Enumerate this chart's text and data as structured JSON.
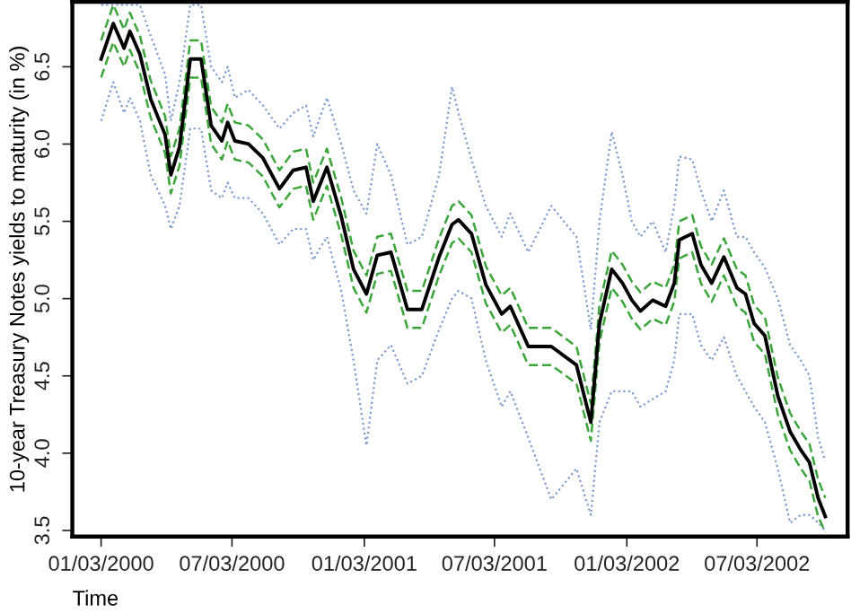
{
  "chart_data": {
    "type": "line",
    "xlabel": "Time",
    "ylabel": "10-year Treasury Notes yields to maturity (in %)",
    "x": [
      "2000-01-03",
      "2000-01-20",
      "2000-02-04",
      "2000-02-12",
      "2000-02-26",
      "2000-03-12",
      "2000-04-01",
      "2000-04-09",
      "2000-04-21",
      "2000-05-06",
      "2000-05-21",
      "2000-06-04",
      "2000-06-19",
      "2000-06-27",
      "2000-07-07",
      "2000-07-26",
      "2000-08-15",
      "2000-09-07",
      "2000-09-26",
      "2000-10-14",
      "2000-10-24",
      "2000-11-12",
      "2000-12-02",
      "2000-12-19",
      "2001-01-06",
      "2001-01-21",
      "2001-02-09",
      "2001-03-04",
      "2001-03-24",
      "2001-04-17",
      "2001-05-05",
      "2001-05-14",
      "2001-06-01",
      "2001-06-21",
      "2001-07-13",
      "2001-07-25",
      "2001-08-19",
      "2001-09-20",
      "2001-10-25",
      "2001-11-14",
      "2001-11-26",
      "2001-12-13",
      "2001-12-28",
      "2002-01-10",
      "2002-01-22",
      "2002-02-08",
      "2002-02-26",
      "2002-03-10",
      "2002-03-17",
      "2002-04-04",
      "2002-04-16",
      "2002-05-01",
      "2002-05-18",
      "2002-06-05",
      "2002-06-17",
      "2002-06-29",
      "2002-07-14",
      "2002-08-01",
      "2002-08-18",
      "2002-09-02",
      "2002-09-14",
      "2002-09-26",
      "2002-10-06"
    ],
    "series": [
      {
        "color": "#7b9bd1",
        "line_style": "dotted",
        "values": [
          6.9,
          6.9,
          6.9,
          6.9,
          6.9,
          6.7,
          6.45,
          6.15,
          6.4,
          6.9,
          6.9,
          6.5,
          6.4,
          6.5,
          6.3,
          6.35,
          6.25,
          6.1,
          6.2,
          6.25,
          6.05,
          6.3,
          6.0,
          5.7,
          5.55,
          6.0,
          5.8,
          5.35,
          5.4,
          5.8,
          6.37,
          6.2,
          5.9,
          5.6,
          5.4,
          5.55,
          5.3,
          5.6,
          5.4,
          4.8,
          5.5,
          6.08,
          5.8,
          5.5,
          5.4,
          5.5,
          5.3,
          5.6,
          5.92,
          5.9,
          5.7,
          5.5,
          5.7,
          5.4,
          5.4,
          5.3,
          5.2,
          5.0,
          4.7,
          4.6,
          4.5,
          4.1,
          3.95
        ]
      },
      {
        "color": "#7b9bd1",
        "line_style": "dotted",
        "values": [
          6.15,
          6.4,
          6.2,
          6.3,
          6.15,
          5.8,
          5.6,
          5.45,
          5.6,
          6.1,
          6.1,
          5.7,
          5.65,
          5.75,
          5.65,
          5.65,
          5.55,
          5.35,
          5.45,
          5.45,
          5.25,
          5.4,
          5.05,
          4.6,
          4.05,
          4.6,
          4.7,
          4.45,
          4.5,
          4.8,
          5.0,
          5.05,
          5.0,
          4.6,
          4.3,
          4.4,
          4.1,
          3.7,
          3.9,
          3.6,
          4.2,
          4.4,
          4.4,
          4.4,
          4.3,
          4.35,
          4.4,
          4.6,
          4.9,
          4.9,
          4.7,
          4.6,
          4.75,
          4.5,
          4.4,
          4.3,
          4.2,
          3.9,
          3.55,
          3.6,
          3.6,
          3.55,
          3.5
        ]
      },
      {
        "color": "#3aa63a",
        "line_style": "dashed",
        "values": [
          6.67,
          6.9,
          6.74,
          6.85,
          6.7,
          6.41,
          6.18,
          5.92,
          6.1,
          6.67,
          6.67,
          6.24,
          6.14,
          6.26,
          6.14,
          6.12,
          6.03,
          5.83,
          5.95,
          5.97,
          5.75,
          5.97,
          5.65,
          5.31,
          5.15,
          5.4,
          5.42,
          5.05,
          5.05,
          5.39,
          5.6,
          5.63,
          5.54,
          5.21,
          5.02,
          5.07,
          4.81,
          4.81,
          4.69,
          4.32,
          4.96,
          5.31,
          5.22,
          5.11,
          5.04,
          5.11,
          5.07,
          5.22,
          5.5,
          5.54,
          5.34,
          5.22,
          5.39,
          5.19,
          5.15,
          4.96,
          4.88,
          4.49,
          4.26,
          4.14,
          4.06,
          3.83,
          3.71
        ]
      },
      {
        "color": "#3aa63a",
        "line_style": "dashed",
        "values": [
          6.43,
          6.66,
          6.5,
          6.61,
          6.46,
          6.17,
          5.94,
          5.68,
          5.86,
          6.43,
          6.43,
          6.0,
          5.9,
          6.02,
          5.9,
          5.88,
          5.79,
          5.59,
          5.71,
          5.73,
          5.51,
          5.73,
          5.41,
          5.07,
          4.91,
          5.16,
          5.18,
          4.81,
          4.81,
          5.15,
          5.36,
          5.39,
          5.3,
          4.97,
          4.78,
          4.83,
          4.57,
          4.57,
          4.45,
          4.08,
          4.72,
          5.07,
          4.98,
          4.87,
          4.8,
          4.87,
          4.83,
          4.98,
          5.26,
          5.3,
          5.1,
          4.98,
          5.15,
          4.95,
          4.91,
          4.72,
          4.64,
          4.25,
          4.02,
          3.9,
          3.82,
          3.59,
          3.49
        ]
      },
      {
        "color": "#000000",
        "line_style": "solid",
        "values": [
          6.55,
          6.78,
          6.62,
          6.73,
          6.58,
          6.29,
          6.06,
          5.8,
          5.98,
          6.55,
          6.55,
          6.12,
          6.02,
          6.14,
          6.02,
          6.0,
          5.91,
          5.71,
          5.83,
          5.85,
          5.63,
          5.85,
          5.53,
          5.19,
          5.03,
          5.28,
          5.3,
          4.93,
          4.93,
          5.27,
          5.48,
          5.51,
          5.42,
          5.09,
          4.9,
          4.95,
          4.69,
          4.69,
          4.57,
          4.2,
          4.84,
          5.19,
          5.1,
          4.99,
          4.92,
          4.99,
          4.95,
          5.1,
          5.38,
          5.42,
          5.22,
          5.1,
          5.27,
          5.07,
          5.03,
          4.84,
          4.76,
          4.37,
          4.14,
          4.02,
          3.94,
          3.71,
          3.59
        ]
      }
    ],
    "xlim": [
      "1999-11-24",
      "2002-11-06"
    ],
    "xticks": [
      {
        "value": "2000-01-03",
        "label": "01/03/2000"
      },
      {
        "value": "2000-07-03",
        "label": "07/03/2000"
      },
      {
        "value": "2001-01-03",
        "label": "01/03/2001"
      },
      {
        "value": "2001-07-03",
        "label": "07/03/2001"
      },
      {
        "value": "2002-01-03",
        "label": "01/03/2002"
      },
      {
        "value": "2002-07-03",
        "label": "07/03/2002"
      }
    ],
    "ylim": [
      3.46,
      6.92
    ],
    "yticks": [
      3.5,
      {
        "value": 4,
        "label": "4.0"
      },
      4.5,
      {
        "value": 5,
        "label": "5.0"
      },
      5.5,
      {
        "value": 6,
        "label": "6.0"
      },
      6.5
    ]
  }
}
